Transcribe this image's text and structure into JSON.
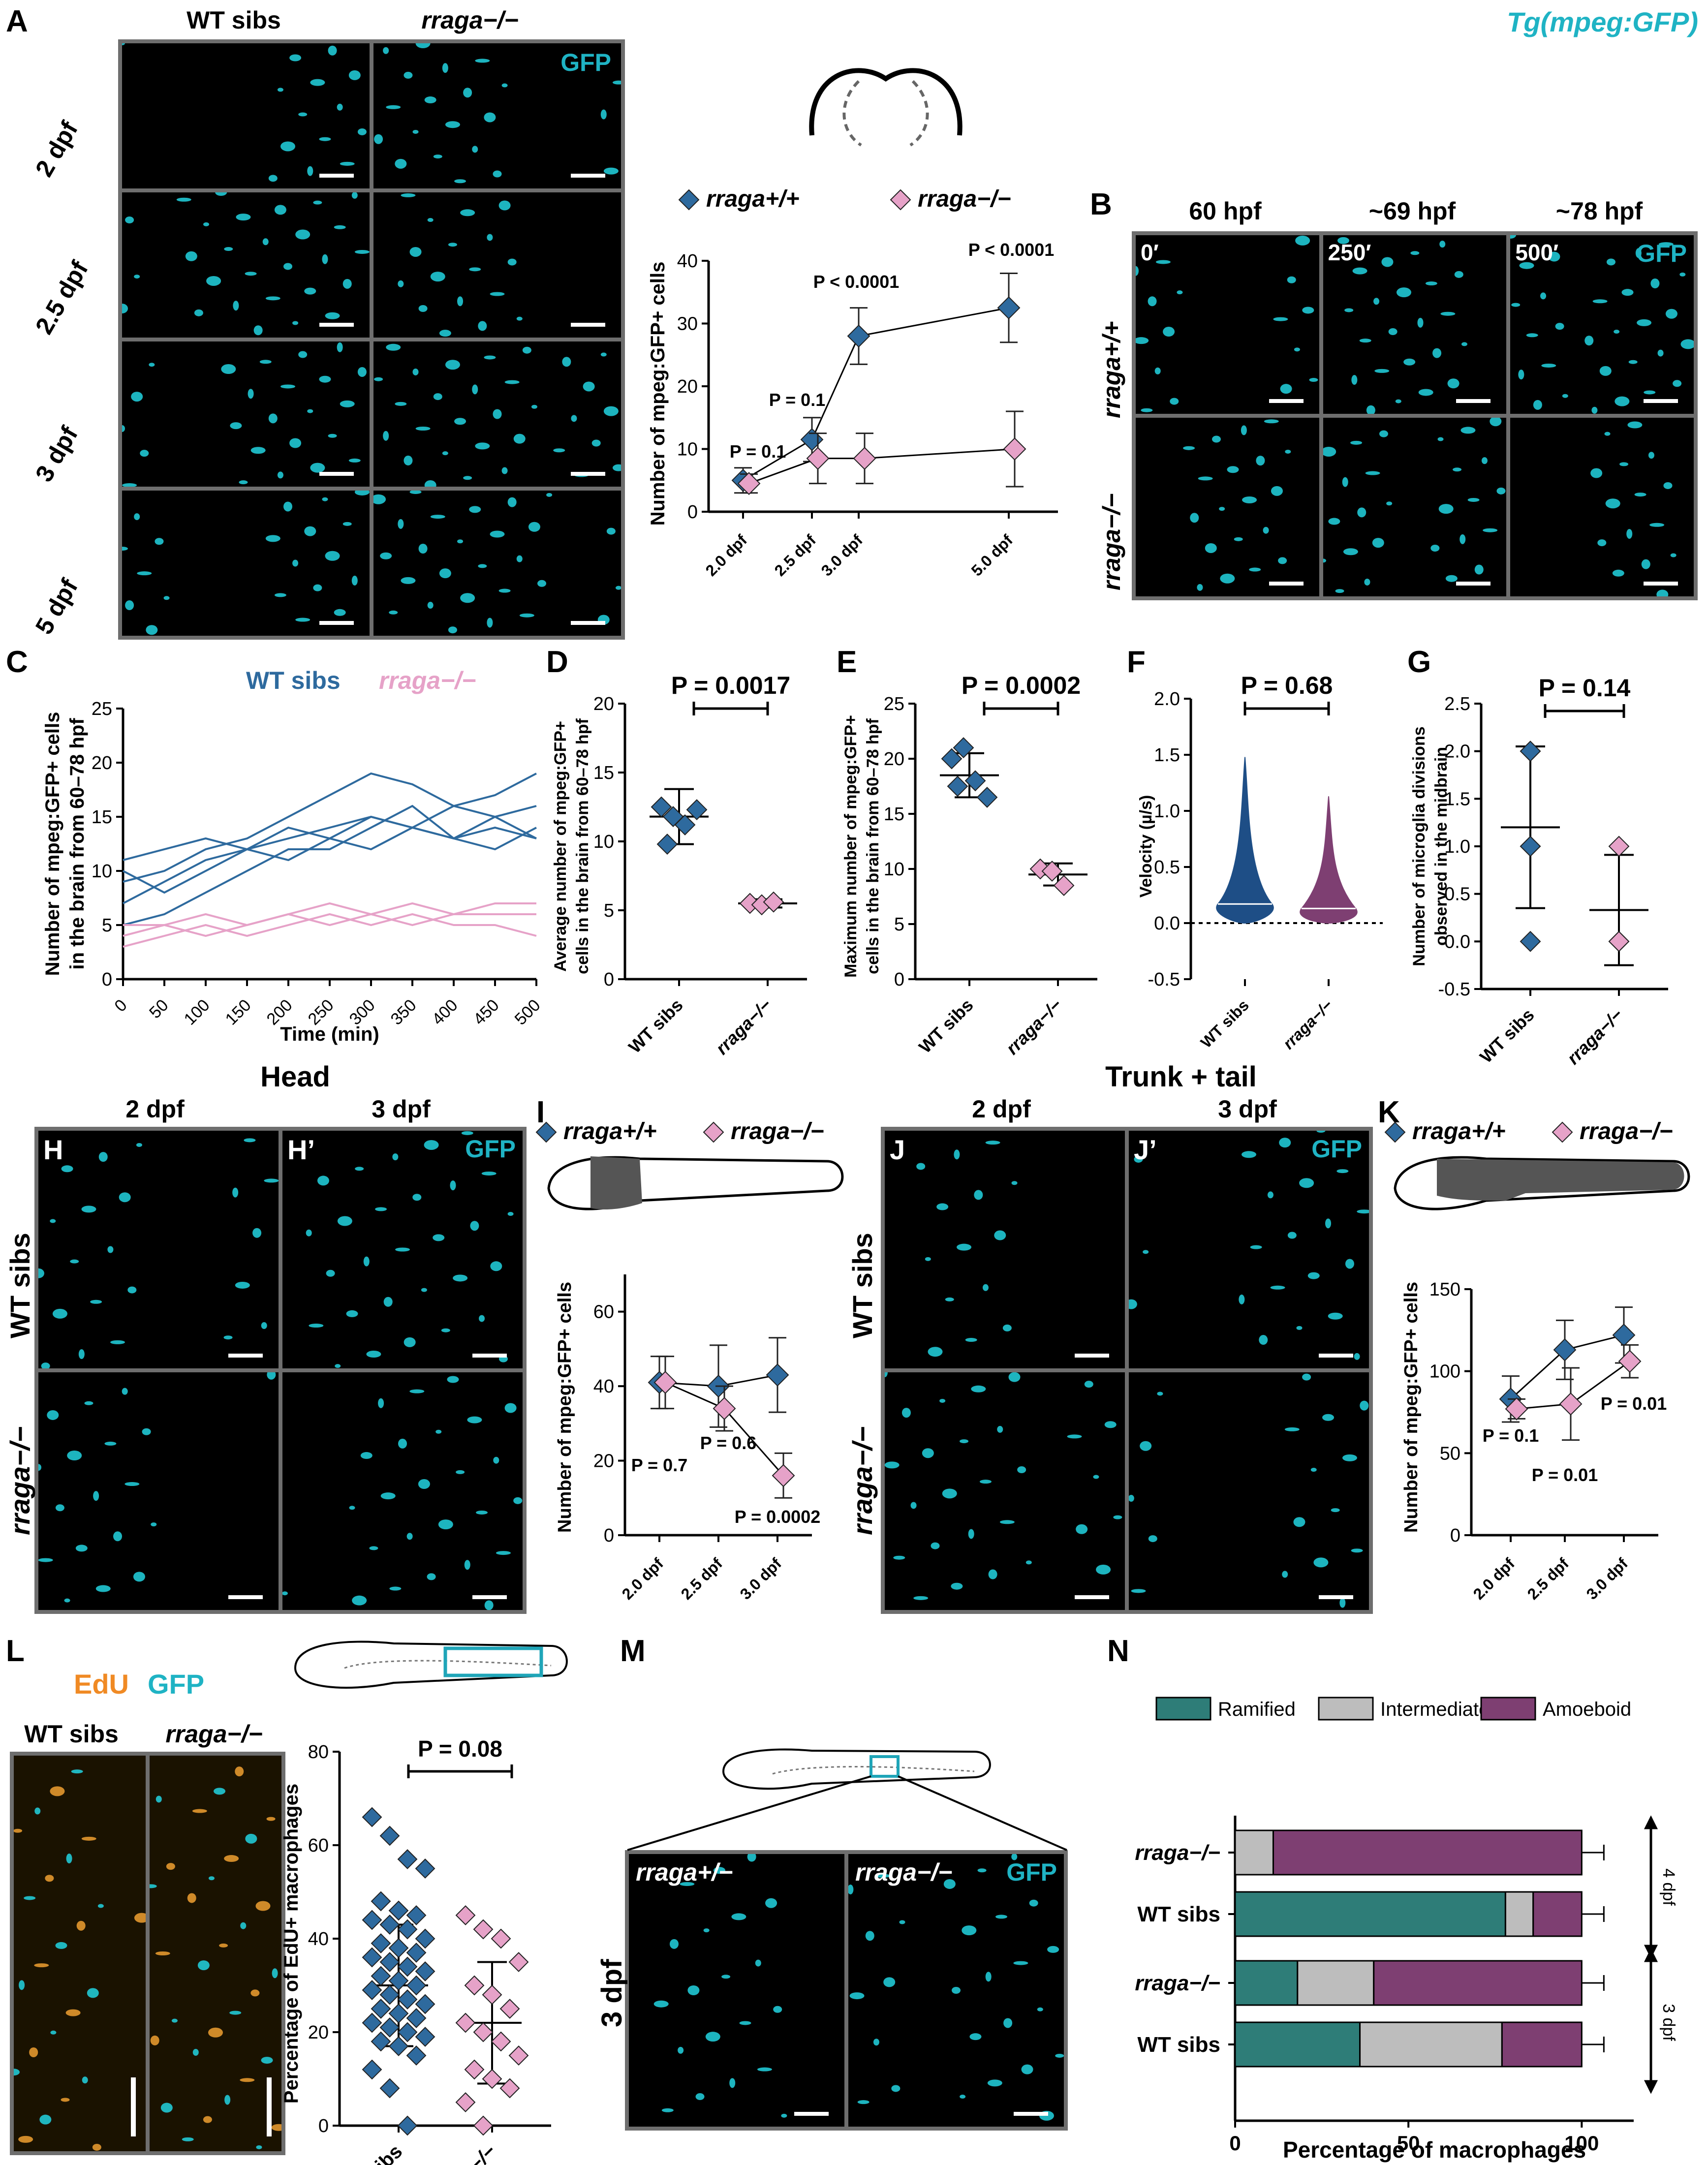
{
  "title": "Tg(mpeg:GFP)",
  "colors": {
    "wt": "#2e6a9e",
    "mut": "#e6a2c8",
    "cyan": "#18c9d8",
    "ramified": "#2e7d78",
    "intermediate": "#bdbdbd",
    "amoeboid": "#7e3f72",
    "edu": "#f08a24"
  },
  "panels": {
    "A": {
      "label": "A",
      "col_headers": [
        "WT sibs",
        "rraga−/−"
      ],
      "rows": [
        "2 dpf",
        "2.5 dpf",
        "3 dpf",
        "5 dpf"
      ],
      "channel": "GFP"
    },
    "B": {
      "label": "B",
      "col_headers": [
        "60 hpf",
        "~69 hpf",
        "~78 hpf"
      ],
      "times": [
        "0′",
        "250′",
        "500′"
      ],
      "rows": [
        "rraga+/+",
        "rraga−/−"
      ],
      "channel": "GFP"
    },
    "C": {
      "label": "C"
    },
    "D": {
      "label": "D"
    },
    "E": {
      "label": "E"
    },
    "F": {
      "label": "F"
    },
    "G": {
      "label": "G"
    },
    "H": {
      "label": "H",
      "label2": "H’",
      "section": "Head",
      "col_headers": [
        "2 dpf",
        "3 dpf"
      ],
      "rows": [
        "WT sibs",
        "rraga−/−"
      ],
      "channel": "GFP"
    },
    "I": {
      "label": "I"
    },
    "J": {
      "label": "J",
      "label2": "J’",
      "section": "Trunk + tail",
      "col_headers": [
        "2 dpf",
        "3 dpf"
      ],
      "rows": [
        "WT sibs",
        "rraga−/−"
      ],
      "channel": "GFP"
    },
    "K": {
      "label": "K"
    },
    "L": {
      "label": "L",
      "channels": [
        "EdU",
        "GFP"
      ],
      "col_headers": [
        "WT sibs",
        "rraga−/−"
      ]
    },
    "M": {
      "label": "M",
      "row": "3 dpf",
      "col_headers": [
        "rraga+/−",
        "rraga−/−"
      ],
      "channel": "GFP"
    },
    "N": {
      "label": "N"
    }
  },
  "chart_data": [
    {
      "id": "A",
      "type": "line",
      "legend": [
        "rraga+/+",
        "rraga−/−"
      ],
      "ylabel": "Number of mpeg:GFP+ cells",
      "ylim": [
        0,
        40
      ],
      "yticks": [
        0,
        10,
        20,
        30,
        40
      ],
      "x_labels": [
        "2.0 dpf",
        "2.5 dpf",
        "3.0 dpf",
        "5.0 dpf"
      ],
      "x": [
        2.0,
        2.5,
        3.0,
        5.0
      ],
      "series": [
        {
          "name": "rraga+/+",
          "values": [
            5,
            11.5,
            28,
            32.5
          ],
          "err": [
            2,
            3.5,
            4.5,
            5.5
          ]
        },
        {
          "name": "rraga−/−",
          "values": [
            4.5,
            8.5,
            8.5,
            10
          ],
          "err": [
            1.5,
            4,
            4,
            6
          ]
        }
      ],
      "annotations": [
        "P = 0.1",
        "P = 0.1",
        "P < 0.0001",
        "P < 0.0001"
      ]
    },
    {
      "id": "C",
      "type": "line",
      "xlabel": "Time (min)",
      "ylabel": "Number of mpeg:GFP+ cells in the brain from 60–78 hpf",
      "xlim": [
        0,
        500
      ],
      "ylim": [
        0,
        25
      ],
      "xticks": [
        0,
        50,
        100,
        150,
        200,
        250,
        300,
        350,
        400,
        450,
        500
      ],
      "yticks": [
        0,
        5,
        10,
        15,
        20,
        25
      ],
      "legend": [
        "WT sibs",
        "rraga−/−"
      ],
      "series": [
        {
          "name": "WT sibs",
          "x": [
            0,
            50,
            100,
            150,
            200,
            250,
            300,
            350,
            400,
            450,
            500
          ],
          "values": [
            9,
            10,
            12,
            13,
            15,
            17,
            19,
            18,
            16,
            17,
            19
          ]
        },
        {
          "name": "WT sibs",
          "x": [
            0,
            50,
            100,
            150,
            200,
            250,
            300,
            350,
            400,
            450,
            500
          ],
          "values": [
            7,
            9,
            11,
            12,
            13,
            14,
            15,
            14,
            13,
            12,
            14
          ]
        },
        {
          "name": "WT sibs",
          "x": [
            0,
            50,
            100,
            150,
            200,
            250,
            300,
            350,
            400,
            450,
            500
          ],
          "values": [
            10,
            8,
            10,
            12,
            11,
            13,
            12,
            14,
            13,
            15,
            16
          ]
        },
        {
          "name": "WT sibs",
          "x": [
            0,
            50,
            100,
            150,
            200,
            250,
            300,
            350,
            400,
            450,
            500
          ],
          "values": [
            5,
            6,
            8,
            10,
            12,
            12,
            14,
            16,
            13,
            14,
            13
          ]
        },
        {
          "name": "WT sibs",
          "x": [
            0,
            50,
            100,
            150,
            200,
            250,
            300,
            350,
            400,
            450,
            500
          ],
          "values": [
            11,
            12,
            13,
            12,
            14,
            13,
            15,
            14,
            16,
            15,
            13
          ]
        },
        {
          "name": "rraga−/−",
          "x": [
            0,
            50,
            100,
            150,
            200,
            250,
            300,
            350,
            400,
            450,
            500
          ],
          "values": [
            5,
            5,
            6,
            5,
            6,
            7,
            6,
            7,
            6,
            7,
            7
          ]
        },
        {
          "name": "rraga−/−",
          "x": [
            0,
            50,
            100,
            150,
            200,
            250,
            300,
            350,
            400,
            450,
            500
          ],
          "values": [
            4,
            5,
            4,
            5,
            6,
            5,
            6,
            5,
            6,
            6,
            6
          ]
        },
        {
          "name": "rraga−/−",
          "x": [
            0,
            50,
            100,
            150,
            200,
            250,
            300,
            350,
            400,
            450,
            500
          ],
          "values": [
            3,
            4,
            5,
            4,
            5,
            6,
            5,
            6,
            5,
            5,
            4
          ]
        }
      ]
    },
    {
      "id": "D",
      "type": "scatter",
      "categories": [
        "WT sibs",
        "rraga−/−"
      ],
      "ylabel": "Average number of mpeg:GFP+ cells in the brain from 60–78 hpf",
      "ylim": [
        0,
        20
      ],
      "yticks": [
        0,
        5,
        10,
        15,
        20
      ],
      "points": [
        [
          12.5,
          11.8,
          11.2,
          12.3,
          9.8
        ],
        [
          5.5,
          5.4,
          5.6
        ]
      ],
      "mean": [
        11.8,
        5.5
      ],
      "sd": [
        2,
        0.3
      ],
      "annotation": "P = 0.0017"
    },
    {
      "id": "E",
      "type": "scatter",
      "categories": [
        "WT sibs",
        "rraga−/−"
      ],
      "ylabel": "Maximum number of mpeg:GFP+ cells in the brain from 60–78 hpf",
      "ylim": [
        0,
        25
      ],
      "yticks": [
        0,
        5,
        10,
        15,
        20,
        25
      ],
      "points": [
        [
          20,
          21,
          18,
          16.5,
          17.5
        ],
        [
          10,
          9.8,
          8.5
        ]
      ],
      "mean": [
        18.5,
        9.5
      ],
      "sd": [
        2,
        1
      ],
      "annotation": "P = 0.0002"
    },
    {
      "id": "F",
      "type": "violin",
      "categories": [
        "WT sibs",
        "rraga−/−"
      ],
      "ylabel": "Velocity (µ/s)",
      "ylim": [
        -0.5,
        2.0
      ],
      "yticks": [
        -0.5,
        0.0,
        0.5,
        1.0,
        1.5,
        2.0
      ],
      "median": [
        0.17,
        0.13
      ],
      "max": [
        1.48,
        1.13
      ],
      "annotation": "P = 0.68"
    },
    {
      "id": "G",
      "type": "scatter",
      "categories": [
        "WT sibs",
        "rraga−/−"
      ],
      "ylabel": "Number of microglia divisions observed in the midbrain",
      "ylim": [
        -0.5,
        2.5
      ],
      "yticks": [
        -0.5,
        0.0,
        0.5,
        1.0,
        1.5,
        2.0,
        2.5
      ],
      "points": [
        [
          2,
          2,
          1,
          1,
          0
        ],
        [
          1,
          0,
          0
        ]
      ],
      "mean": [
        1.2,
        0.33
      ],
      "sd": [
        0.85,
        0.58
      ],
      "annotation": "P = 0.14"
    },
    {
      "id": "I",
      "type": "line",
      "legend": [
        "rraga+/+",
        "rraga−/−"
      ],
      "ylabel": "Number of mpeg:GFP+ cells",
      "ylim": [
        0,
        70
      ],
      "yticks": [
        0,
        20,
        40,
        60
      ],
      "x_labels": [
        "2.0 dpf",
        "2.5 dpf",
        "3.0 dpf"
      ],
      "x": [
        2.0,
        2.5,
        3.0
      ],
      "series": [
        {
          "name": "rraga+/+",
          "values": [
            41,
            40,
            43
          ],
          "err": [
            7,
            11,
            10
          ]
        },
        {
          "name": "rraga−/−",
          "values": [
            41,
            34,
            16
          ],
          "err": [
            7,
            6,
            6
          ]
        }
      ],
      "annotations": [
        "P = 0.7",
        "P = 0.6",
        "P = 0.0002"
      ]
    },
    {
      "id": "K",
      "type": "line",
      "legend": [
        "rraga+/+",
        "rraga−/−"
      ],
      "ylabel": "Number of mpeg:GFP+ cells",
      "ylim": [
        0,
        150
      ],
      "yticks": [
        0,
        50,
        100,
        150
      ],
      "x_labels": [
        "2.0 dpf",
        "2.5 dpf",
        "3.0 dpf"
      ],
      "x": [
        2.0,
        2.5,
        3.0
      ],
      "series": [
        {
          "name": "rraga+/+",
          "values": [
            83,
            113,
            122
          ],
          "err": [
            14,
            18,
            17
          ]
        },
        {
          "name": "rraga−/−",
          "values": [
            77,
            80,
            106
          ],
          "err": [
            6,
            22,
            10
          ]
        }
      ],
      "annotations": [
        "P = 0.1",
        "P = 0.01",
        "P = 0.01"
      ]
    },
    {
      "id": "L",
      "type": "scatter",
      "categories": [
        "WT sibs",
        "rraga−/−"
      ],
      "ylabel": "Percentage of EdU+ macrophages",
      "ylim": [
        0,
        80
      ],
      "yticks": [
        0,
        20,
        40,
        60,
        80
      ],
      "points": [
        [
          66,
          62,
          57,
          55,
          48,
          46,
          45,
          44,
          43,
          42,
          40,
          39,
          38,
          37,
          36,
          35,
          34,
          33,
          32,
          31,
          30,
          29,
          28,
          27,
          26,
          25,
          24,
          23,
          22,
          21,
          20,
          19,
          18,
          17,
          15,
          12,
          8,
          0
        ],
        [
          45,
          42,
          40,
          35,
          30,
          28,
          25,
          22,
          20,
          18,
          15,
          12,
          10,
          8,
          5,
          0
        ]
      ],
      "mean": [
        30,
        22
      ],
      "sd": [
        13,
        13
      ],
      "annotation": "P = 0.08"
    },
    {
      "id": "N",
      "type": "bar",
      "orientation": "horizontal",
      "stacked": true,
      "categories": [
        "rraga−/−",
        "WT sibs",
        "rraga−/−",
        "WT sibs"
      ],
      "groups": [
        "4 dpf",
        "4 dpf",
        "3 dpf",
        "3 dpf"
      ],
      "xlabel": "Percentage of macrophages",
      "xlim": [
        0,
        115
      ],
      "xticks": [
        0,
        50,
        100
      ],
      "series": [
        {
          "name": "Ramified",
          "values": [
            0,
            78,
            18,
            36
          ]
        },
        {
          "name": "Intermediate",
          "values": [
            11,
            8,
            22,
            41
          ]
        },
        {
          "name": "Amoeboid",
          "values": [
            89,
            14,
            60,
            23
          ]
        }
      ]
    }
  ]
}
